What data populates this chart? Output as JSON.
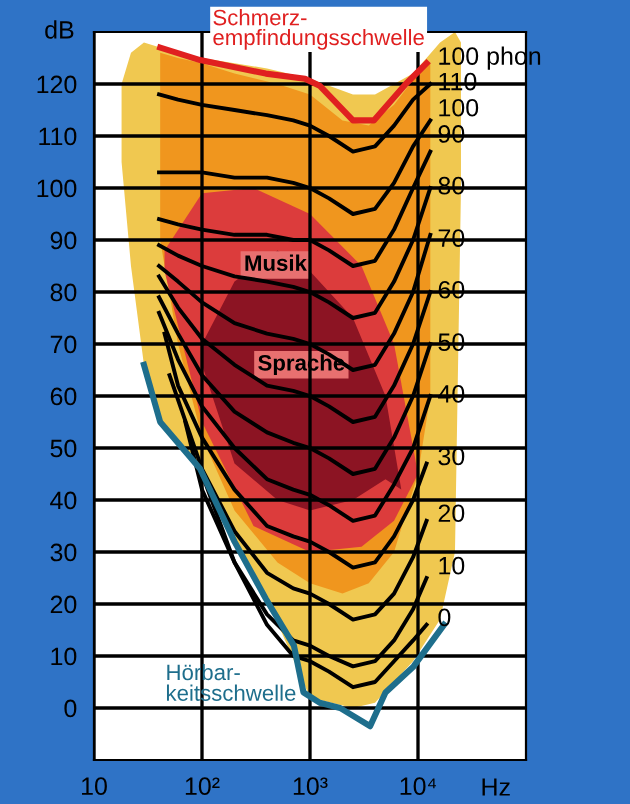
{
  "chart_data": {
    "type": "line",
    "xlabel": "Hz",
    "ylabel": "dB",
    "log": "x",
    "xlim": [
      10,
      100000
    ],
    "xticks": [
      10,
      {
        "value": 100,
        "label": "10²"
      },
      {
        "value": 1000,
        "label": "10³"
      },
      {
        "value": 10000,
        "label": "10⁴"
      }
    ],
    "ylim": [
      -10,
      130
    ],
    "yticks": [
      0,
      10,
      20,
      30,
      40,
      50,
      60,
      70,
      80,
      90,
      100,
      110,
      120
    ],
    "grid": true,
    "series": [
      {
        "color": "#000000",
        "x": [
          40,
          60,
          100,
          200,
          400,
          700,
          1000,
          1500,
          2500,
          4000,
          6000,
          9000,
          13000
        ],
        "values": [
          118,
          117,
          116,
          115,
          114,
          113,
          112,
          110,
          107,
          108,
          112,
          117,
          120
        ]
      },
      {
        "color": "#000000",
        "x": [
          40,
          60,
          100,
          200,
          400,
          700,
          1000,
          1500,
          2500,
          4000,
          6000,
          9000,
          13000
        ],
        "values": [
          103,
          103,
          103,
          102,
          102,
          101,
          100,
          98,
          95,
          96,
          101,
          108,
          113
        ]
      },
      {
        "color": "#000000",
        "x": [
          40,
          60,
          100,
          200,
          400,
          700,
          1000,
          1500,
          2500,
          4000,
          6000,
          9000,
          13000
        ],
        "values": [
          94,
          93,
          92,
          91,
          91,
          90,
          90,
          88,
          85,
          86,
          92,
          100,
          107
        ]
      },
      {
        "color": "#000000",
        "x": [
          40,
          60,
          100,
          200,
          400,
          700,
          1000,
          1500,
          2500,
          4000,
          6000,
          9000,
          13000
        ],
        "values": [
          89,
          87,
          85,
          83,
          82,
          81,
          80,
          78,
          75,
          76,
          82,
          90,
          100
        ]
      },
      {
        "color": "#000000",
        "x": [
          40,
          60,
          100,
          200,
          400,
          700,
          1000,
          1500,
          2500,
          4000,
          6000,
          9000,
          13000
        ],
        "values": [
          85,
          82,
          78,
          74,
          72,
          71,
          70,
          68,
          65,
          66,
          72,
          80,
          91
        ]
      },
      {
        "color": "#000000",
        "x": [
          40,
          60,
          100,
          200,
          400,
          700,
          1000,
          1500,
          2500,
          4000,
          6000,
          9000,
          13000
        ],
        "values": [
          83,
          77,
          71,
          66,
          62,
          61,
          60,
          58,
          55,
          56,
          62,
          70,
          80
        ]
      },
      {
        "color": "#000000",
        "x": [
          40,
          60,
          100,
          200,
          400,
          700,
          1000,
          1500,
          2500,
          4000,
          6000,
          9000,
          13000
        ],
        "values": [
          79,
          72,
          64,
          57,
          53,
          51,
          50,
          48,
          45,
          46,
          52,
          60,
          70
        ]
      },
      {
        "color": "#000000",
        "x": [
          40,
          60,
          100,
          200,
          400,
          700,
          1000,
          1500,
          2500,
          4000,
          6000,
          9000,
          13000
        ],
        "values": [
          76,
          67,
          58,
          50,
          44,
          42,
          41,
          39,
          36,
          37,
          43,
          50,
          60
        ]
      },
      {
        "color": "#000000",
        "x": [
          45,
          60,
          100,
          200,
          400,
          700,
          1000,
          1500,
          2500,
          4000,
          6000,
          9000,
          12000
        ],
        "values": [
          72,
          62,
          52,
          42,
          35,
          33,
          32,
          30,
          27,
          28,
          33,
          40,
          47
        ]
      },
      {
        "color": "#000000",
        "x": [
          50,
          100,
          200,
          400,
          700,
          1000,
          1500,
          2500,
          4000,
          6000,
          9000,
          12000
        ],
        "values": [
          64,
          46,
          34,
          26,
          23,
          22,
          20,
          17,
          18,
          22,
          29,
          36
        ]
      },
      {
        "color": "#000000",
        "x": [
          70,
          100,
          200,
          400,
          700,
          1000,
          1500,
          2500,
          4000,
          6000,
          9000,
          12000
        ],
        "values": [
          55,
          42,
          28,
          18,
          13,
          12,
          10,
          8,
          9,
          13,
          19,
          25
        ]
      },
      {
        "color": "#000000",
        "x": [
          100,
          200,
          400,
          700,
          1000,
          1500,
          2500,
          4000,
          6000,
          9000,
          12000
        ],
        "values": [
          45,
          28,
          16,
          10,
          9,
          7,
          4,
          5,
          9,
          13,
          16
        ]
      },
      {
        "name": "Schmerz-\nempfindungsschwelle",
        "color": "#e02020",
        "x": [
          41,
          96,
          390,
          900,
          1240,
          2500,
          3900,
          7700,
          12000
        ],
        "values": [
          127,
          124.6,
          122,
          121,
          119.6,
          113,
          113,
          120,
          124
        ]
      },
      {
        "name": "Hörbar-\nkeitsschwelle",
        "color": "#1e6e8c",
        "x": [
          29,
          41,
          96,
          200,
          390,
          710,
          870,
          1230,
          1900,
          3600,
          5000,
          9100,
          17400
        ],
        "values": [
          66,
          55,
          46,
          32,
          21,
          12,
          3,
          1,
          0,
          -3.5,
          3,
          8,
          16
        ]
      }
    ],
    "annotations": [
      "Musik",
      "Sprache",
      "100 phon",
      "110",
      "100",
      "90",
      "80",
      "70",
      "60",
      "50",
      "40",
      "30",
      "20",
      "10",
      "0"
    ]
  }
}
